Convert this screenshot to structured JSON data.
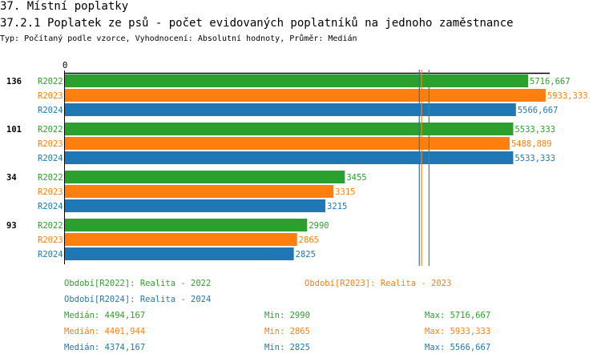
{
  "header": {
    "section": "37. Místní poplatky",
    "title": "37.2.1 Poplatek ze psů - počet evidovaných poplatníků na jednoho zaměstnance",
    "subtitle": "Typ: Počítaný podle vzorce, Vyhodnocení: Absolutní hodnoty, Průměr: Medián"
  },
  "colors": {
    "R2022": "#2ca02c",
    "R2023": "#ff7f0e",
    "R2024": "#1f77b4"
  },
  "chart_data": {
    "type": "bar",
    "orientation": "horizontal",
    "axis_zero_label": "0",
    "categories": [
      "136",
      "101",
      "34",
      "93"
    ],
    "series": [
      {
        "name": "R2022",
        "values": [
          5716.667,
          5533.333,
          3455,
          2990
        ],
        "labels": [
          "5716,667",
          "5533,333",
          "3455",
          "2990"
        ]
      },
      {
        "name": "R2023",
        "values": [
          5933.333,
          5488.889,
          3315,
          2865
        ],
        "labels": [
          "5933,333",
          "5488,889",
          "3315",
          "2865"
        ]
      },
      {
        "name": "R2024",
        "values": [
          5566.667,
          5533.333,
          3215,
          2825
        ],
        "labels": [
          "5566,667",
          "5533,333",
          "3215",
          "2825"
        ]
      }
    ],
    "medians": {
      "R2022": 4494.167,
      "R2023": 4401.944,
      "R2024": 4374.167
    },
    "xlim": [
      0,
      6000
    ]
  },
  "legend": {
    "periods": [
      "Období[R2022]: Realita - 2022",
      "Období[R2023]: Realita - 2023",
      "Období[R2024]: Realita - 2024"
    ],
    "stats": [
      {
        "median": "Medián: 4494,167",
        "min": "Min: 2990",
        "max": "Max: 5716,667"
      },
      {
        "median": "Medián: 4401,944",
        "min": "Min: 2865",
        "max": "Max: 5933,333"
      },
      {
        "median": "Medián: 4374,167",
        "min": "Min: 2825",
        "max": "Max: 5566,667"
      }
    ]
  }
}
